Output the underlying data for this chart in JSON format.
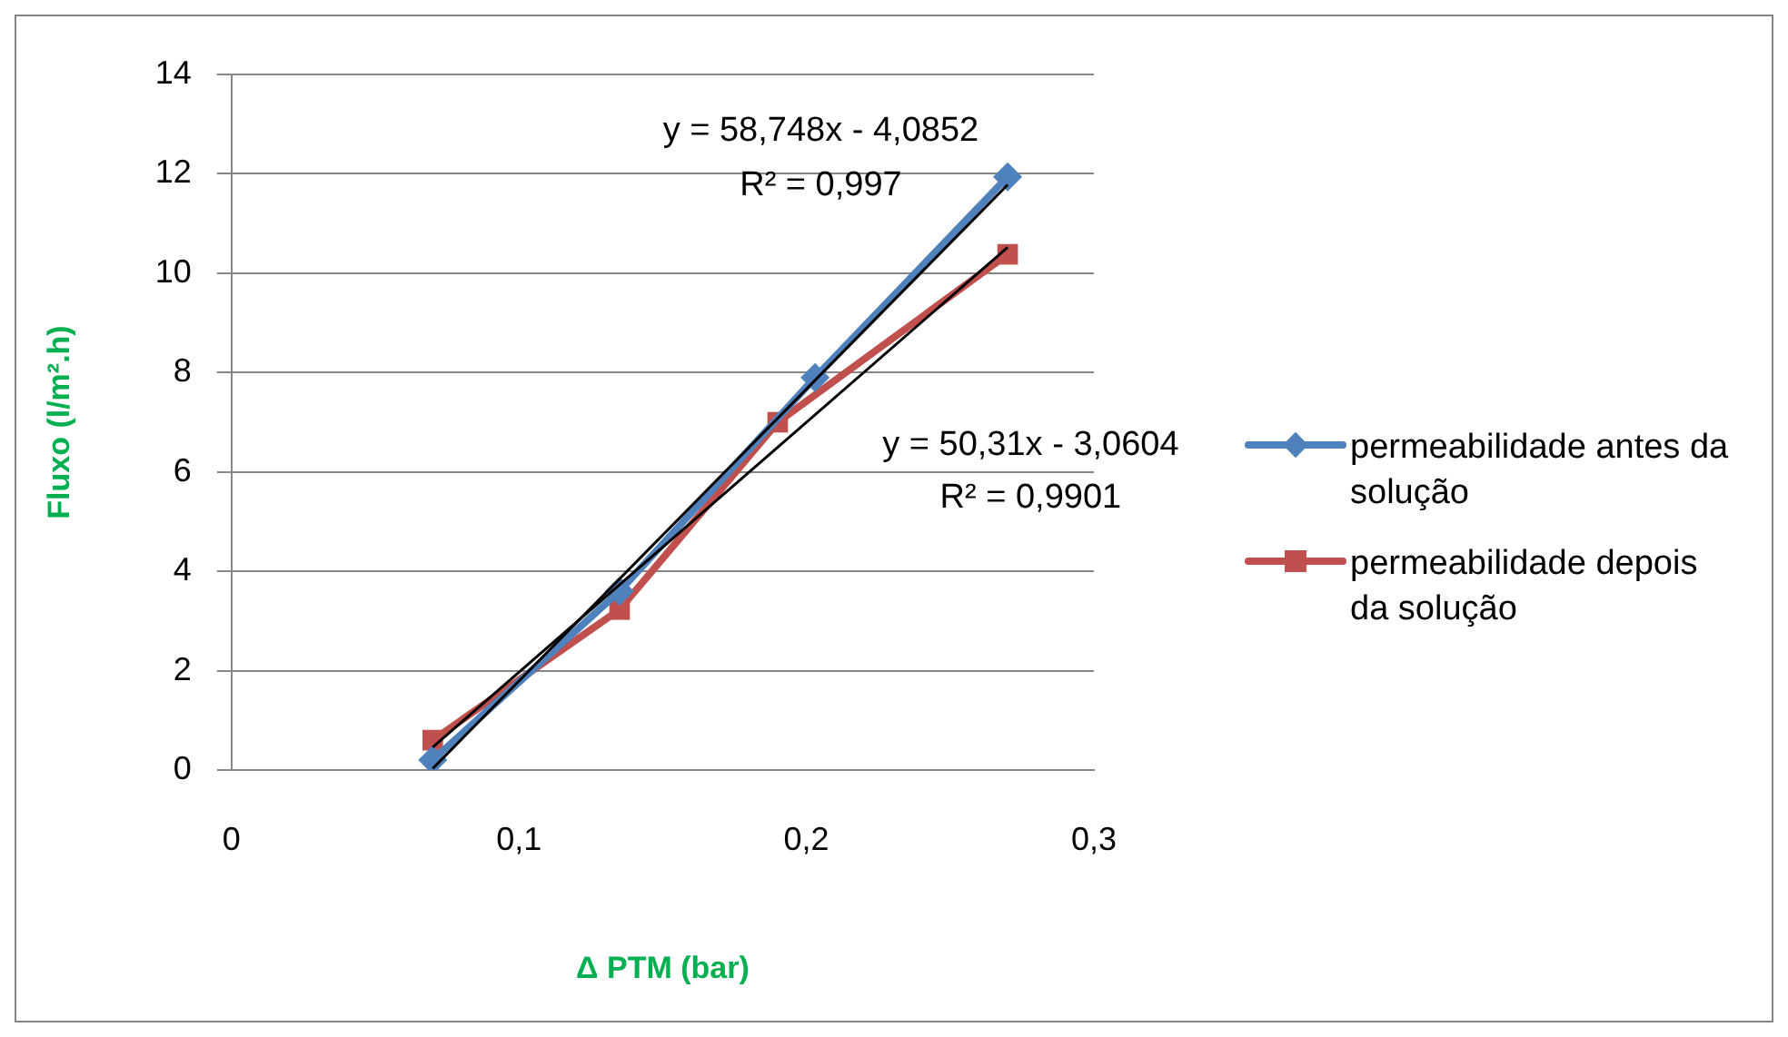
{
  "chart_data": {
    "type": "line",
    "xlabel": "Δ PTM (bar)",
    "ylabel": "Fluxo (l/m².h)",
    "xlim": [
      0,
      0.3
    ],
    "xticks": [
      0,
      {
        "value": 0.1,
        "label": "0,1"
      },
      {
        "value": 0.2,
        "label": "0,2"
      },
      {
        "value": 0.3,
        "label": "0,3"
      }
    ],
    "ylim": [
      0,
      14
    ],
    "yticks": [
      0,
      2,
      4,
      6,
      8,
      10,
      12,
      14
    ],
    "grid": "y",
    "legend": "right",
    "series": [
      {
        "name": "permeabilidade antes da solução",
        "color": "#4f81bd",
        "marker": "diamond",
        "x": [
          0.07,
          0.135,
          0.203,
          0.27
        ],
        "values": [
          0.2,
          3.6,
          7.9,
          11.94
        ]
      },
      {
        "name": "permeabilidade depois da solução",
        "color": "#c0504d",
        "marker": "square",
        "x": [
          0.07,
          0.135,
          0.19,
          0.27
        ],
        "values": [
          0.6,
          3.23,
          7.0,
          10.38
        ]
      },
      {
        "color": "#000000",
        "marker": "none",
        "x": [
          0.07,
          0.27
        ],
        "values": [
          0.03,
          11.78
        ]
      },
      {
        "color": "#000000",
        "marker": "none",
        "x": [
          0.07,
          0.27
        ],
        "values": [
          0.46,
          10.52
        ]
      }
    ],
    "annotations": [
      "y = 58,748x - 4,0852",
      "R² = 0,997",
      "y = 50,31x - 3,0604",
      "R² = 0,9901"
    ]
  }
}
